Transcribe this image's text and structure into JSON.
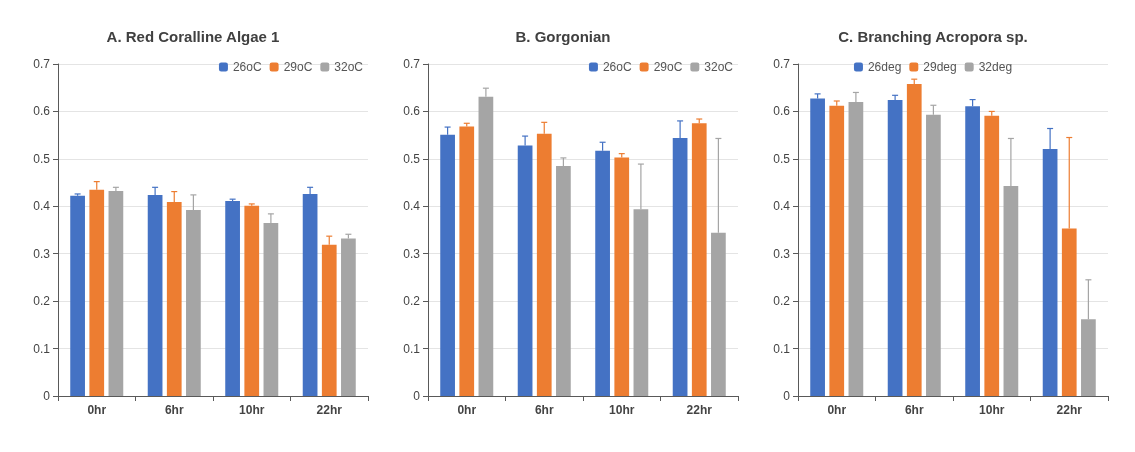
{
  "chart_data": [
    {
      "type": "bar",
      "title": "A. Red Coralline Algae 1",
      "categories": [
        "0hr",
        "6hr",
        "10hr",
        "22hr"
      ],
      "ylim": [
        0,
        0.7
      ],
      "yticks": [
        0,
        0.1,
        0.2,
        0.3,
        0.4,
        0.5,
        0.6,
        0.7
      ],
      "grid": "y",
      "legend": "top right",
      "series": [
        {
          "name": "26oC",
          "color": "#4472c4",
          "values": [
            0.422,
            0.424,
            0.411,
            0.426
          ],
          "errors": [
            [
              0.422,
              0.426
            ],
            [
              0.424,
              0.44
            ],
            [
              0.411,
              0.415
            ],
            [
              0.426,
              0.44
            ]
          ]
        },
        {
          "name": "29oC",
          "color": "#ed7d31",
          "values": [
            0.435,
            0.409,
            0.401,
            0.319
          ],
          "errors": [
            [
              0.435,
              0.452
            ],
            [
              0.409,
              0.431
            ],
            [
              0.401,
              0.405
            ],
            [
              0.319,
              0.337
            ]
          ]
        },
        {
          "name": "32oC",
          "color": "#a5a5a5",
          "values": [
            0.432,
            0.392,
            0.365,
            0.332
          ],
          "errors": [
            [
              0.432,
              0.44
            ],
            [
              0.392,
              0.424
            ],
            [
              0.365,
              0.384
            ],
            [
              0.332,
              0.341
            ]
          ]
        }
      ]
    },
    {
      "type": "bar",
      "title": "B. Gorgonian",
      "categories": [
        "0hr",
        "6hr",
        "10hr",
        "22hr"
      ],
      "ylim": [
        0,
        0.7
      ],
      "yticks": [
        0,
        0.1,
        0.2,
        0.3,
        0.4,
        0.5,
        0.6,
        0.7
      ],
      "grid": "y",
      "legend": "top right",
      "series": [
        {
          "name": "26oC",
          "color": "#4472c4",
          "values": [
            0.551,
            0.528,
            0.517,
            0.544
          ],
          "errors": [
            [
              0.551,
              0.567
            ],
            [
              0.528,
              0.548
            ],
            [
              0.517,
              0.535
            ],
            [
              0.544,
              0.58
            ]
          ]
        },
        {
          "name": "29oC",
          "color": "#ed7d31",
          "values": [
            0.568,
            0.553,
            0.503,
            0.575
          ],
          "errors": [
            [
              0.568,
              0.575
            ],
            [
              0.553,
              0.577
            ],
            [
              0.503,
              0.511
            ],
            [
              0.575,
              0.584
            ]
          ]
        },
        {
          "name": "32oC",
          "color": "#a5a5a5",
          "values": [
            0.631,
            0.485,
            0.394,
            0.344
          ],
          "errors": [
            [
              0.631,
              0.649
            ],
            [
              0.485,
              0.502
            ],
            [
              0.394,
              0.489
            ],
            [
              0.344,
              0.543
            ]
          ]
        }
      ]
    },
    {
      "type": "bar",
      "title": "C. Branching Acropora sp.",
      "categories": [
        "0hr",
        "6hr",
        "10hr",
        "22hr"
      ],
      "ylim": [
        0,
        0.7
      ],
      "yticks": [
        0,
        0.1,
        0.2,
        0.3,
        0.4,
        0.5,
        0.6,
        0.7
      ],
      "grid": "y",
      "legend": "top",
      "series": [
        {
          "name": "26deg",
          "color": "#4472c4",
          "values": [
            0.627,
            0.624,
            0.611,
            0.521
          ],
          "errors": [
            [
              0.627,
              0.637
            ],
            [
              0.624,
              0.634
            ],
            [
              0.611,
              0.625
            ],
            [
              0.521,
              0.564
            ]
          ]
        },
        {
          "name": "29deg",
          "color": "#ed7d31",
          "values": [
            0.612,
            0.658,
            0.591,
            0.353
          ],
          "errors": [
            [
              0.612,
              0.622
            ],
            [
              0.658,
              0.668
            ],
            [
              0.591,
              0.6
            ],
            [
              0.353,
              0.545
            ]
          ]
        },
        {
          "name": "32deg",
          "color": "#a5a5a5",
          "values": [
            0.62,
            0.593,
            0.443,
            0.162
          ],
          "errors": [
            [
              0.62,
              0.64
            ],
            [
              0.593,
              0.613
            ],
            [
              0.443,
              0.543
            ],
            [
              0.162,
              0.245
            ]
          ]
        }
      ]
    }
  ]
}
